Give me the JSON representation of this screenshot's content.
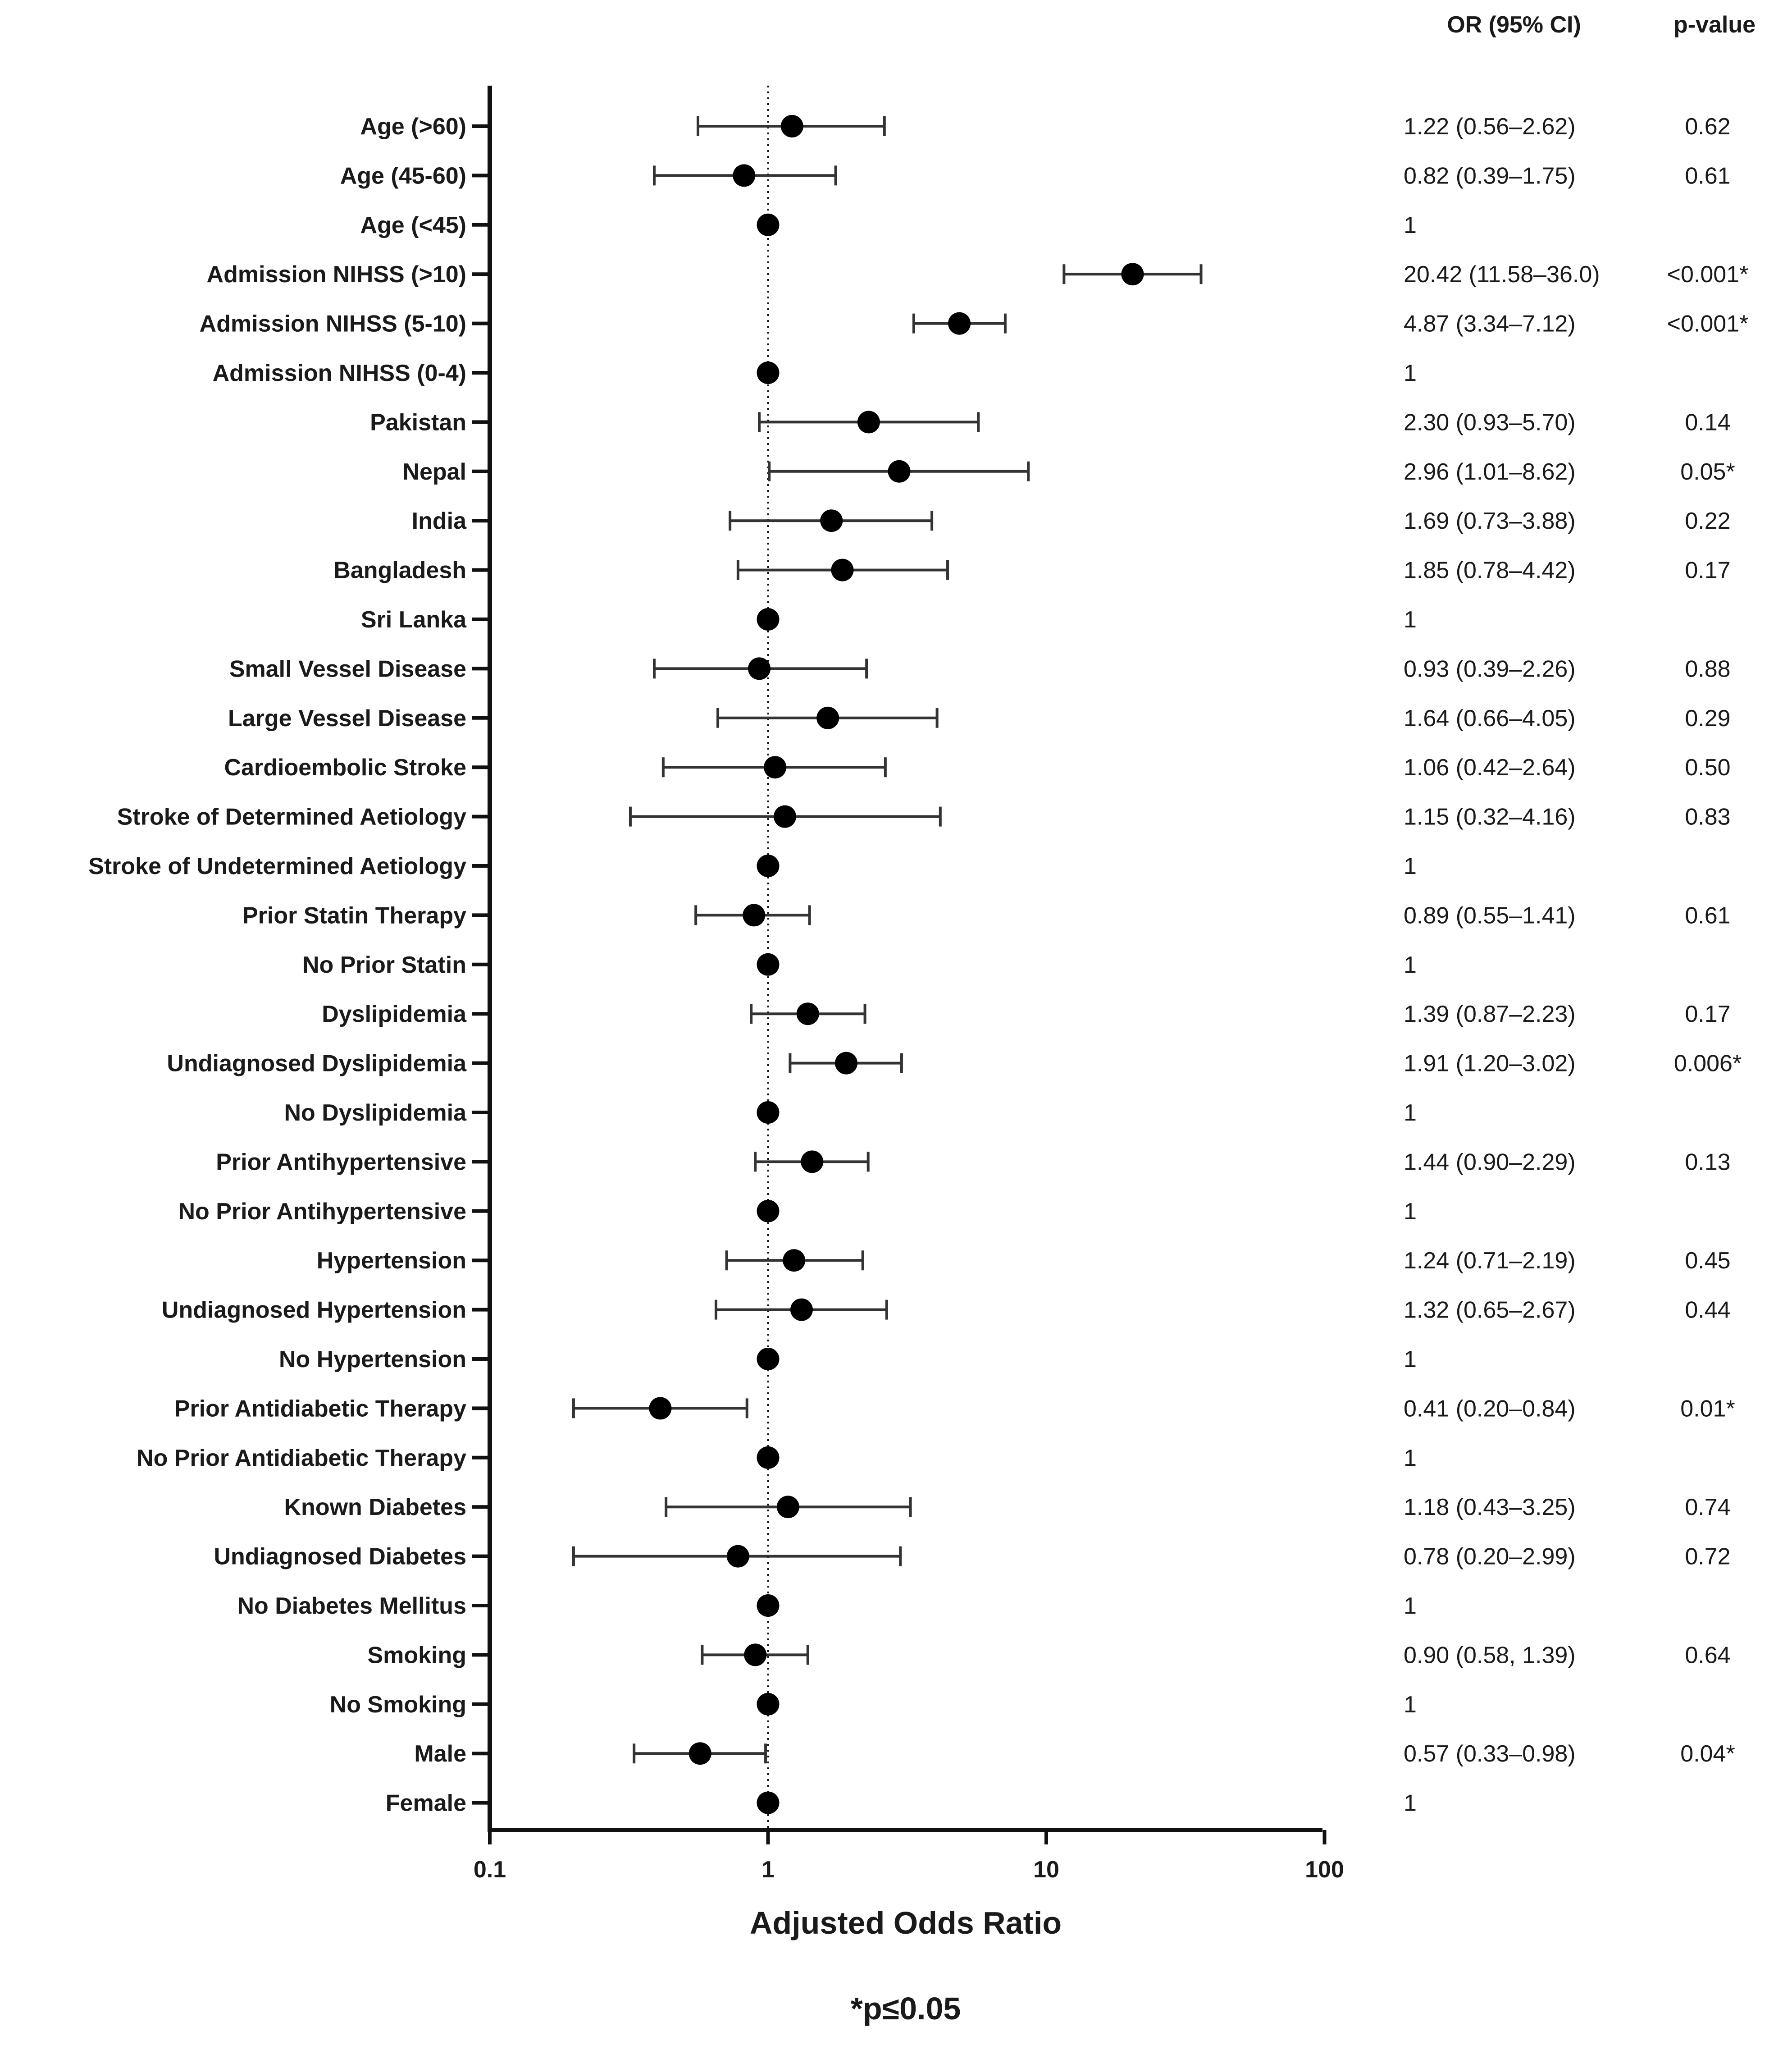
{
  "chart_data": {
    "type": "forest",
    "x_scale": "log",
    "xlim": [
      0.1,
      100
    ],
    "x_ticks": [
      {
        "value": 0.1,
        "label": "0.1"
      },
      {
        "value": 1,
        "label": "1"
      },
      {
        "value": 10,
        "label": "10"
      },
      {
        "value": 100,
        "label": "100"
      }
    ],
    "reference_value": 1,
    "xlabel": "Adjusted Odds Ratio",
    "column_headers": {
      "or_ci": "OR (95% CI)",
      "p_value": "p-value"
    },
    "footnote": "*p≤0.05",
    "rows": [
      {
        "label": "Age (>60)",
        "or": 1.22,
        "low": 0.56,
        "high": 2.62,
        "or_text": "1.22 (0.56–2.62)",
        "p_text": "0.62"
      },
      {
        "label": "Age (45-60)",
        "or": 0.82,
        "low": 0.39,
        "high": 1.75,
        "or_text": "0.82 (0.39–1.75)",
        "p_text": "0.61"
      },
      {
        "label": "Age (<45)",
        "or": 1,
        "low": null,
        "high": null,
        "or_text": "1",
        "p_text": ""
      },
      {
        "label": "Admission NIHSS (>10)",
        "or": 20.42,
        "low": 11.58,
        "high": 36.0,
        "or_text": "20.42 (11.58–36.0)",
        "p_text": "<0.001*"
      },
      {
        "label": "Admission NIHSS (5-10)",
        "or": 4.87,
        "low": 3.34,
        "high": 7.12,
        "or_text": "4.87 (3.34–7.12)",
        "p_text": "<0.001*"
      },
      {
        "label": "Admission NIHSS (0-4)",
        "or": 1,
        "low": null,
        "high": null,
        "or_text": "1",
        "p_text": ""
      },
      {
        "label": "Pakistan",
        "or": 2.3,
        "low": 0.93,
        "high": 5.7,
        "or_text": "2.30 (0.93–5.70)",
        "p_text": "0.14"
      },
      {
        "label": "Nepal",
        "or": 2.96,
        "low": 1.01,
        "high": 8.62,
        "or_text": "2.96 (1.01–8.62)",
        "p_text": "0.05*"
      },
      {
        "label": "India",
        "or": 1.69,
        "low": 0.73,
        "high": 3.88,
        "or_text": "1.69 (0.73–3.88)",
        "p_text": "0.22"
      },
      {
        "label": "Bangladesh",
        "or": 1.85,
        "low": 0.78,
        "high": 4.42,
        "or_text": "1.85 (0.78–4.42)",
        "p_text": "0.17"
      },
      {
        "label": "Sri Lanka",
        "or": 1,
        "low": null,
        "high": null,
        "or_text": "1",
        "p_text": ""
      },
      {
        "label": "Small Vessel Disease",
        "or": 0.93,
        "low": 0.39,
        "high": 2.26,
        "or_text": "0.93 (0.39–2.26)",
        "p_text": "0.88"
      },
      {
        "label": "Large Vessel Disease",
        "or": 1.64,
        "low": 0.66,
        "high": 4.05,
        "or_text": "1.64 (0.66–4.05)",
        "p_text": "0.29"
      },
      {
        "label": "Cardioembolic Stroke",
        "or": 1.06,
        "low": 0.42,
        "high": 2.64,
        "or_text": "1.06 (0.42–2.64)",
        "p_text": "0.50"
      },
      {
        "label": "Stroke of Determined Aetiology",
        "or": 1.15,
        "low": 0.32,
        "high": 4.16,
        "or_text": "1.15 (0.32–4.16)",
        "p_text": "0.83"
      },
      {
        "label": "Stroke of Undetermined Aetiology",
        "or": 1,
        "low": null,
        "high": null,
        "or_text": "1",
        "p_text": ""
      },
      {
        "label": "Prior Statin Therapy",
        "or": 0.89,
        "low": 0.55,
        "high": 1.41,
        "or_text": "0.89 (0.55–1.41)",
        "p_text": "0.61"
      },
      {
        "label": "No Prior Statin",
        "or": 1,
        "low": null,
        "high": null,
        "or_text": "1",
        "p_text": ""
      },
      {
        "label": "Dyslipidemia",
        "or": 1.39,
        "low": 0.87,
        "high": 2.23,
        "or_text": "1.39 (0.87–2.23)",
        "p_text": "0.17"
      },
      {
        "label": "Undiagnosed Dyslipidemia",
        "or": 1.91,
        "low": 1.2,
        "high": 3.02,
        "or_text": "1.91 (1.20–3.02)",
        "p_text": "0.006*"
      },
      {
        "label": "No Dyslipidemia",
        "or": 1,
        "low": null,
        "high": null,
        "or_text": "1",
        "p_text": ""
      },
      {
        "label": "Prior Antihypertensive",
        "or": 1.44,
        "low": 0.9,
        "high": 2.29,
        "or_text": "1.44 (0.90–2.29)",
        "p_text": "0.13"
      },
      {
        "label": "No Prior Antihypertensive",
        "or": 1,
        "low": null,
        "high": null,
        "or_text": "1",
        "p_text": ""
      },
      {
        "label": "Hypertension",
        "or": 1.24,
        "low": 0.71,
        "high": 2.19,
        "or_text": "1.24 (0.71–2.19)",
        "p_text": "0.45"
      },
      {
        "label": "Undiagnosed Hypertension",
        "or": 1.32,
        "low": 0.65,
        "high": 2.67,
        "or_text": "1.32 (0.65–2.67)",
        "p_text": "0.44"
      },
      {
        "label": "No Hypertension",
        "or": 1,
        "low": null,
        "high": null,
        "or_text": "1",
        "p_text": ""
      },
      {
        "label": "Prior Antidiabetic Therapy",
        "or": 0.41,
        "low": 0.2,
        "high": 0.84,
        "or_text": "0.41 (0.20–0.84)",
        "p_text": "0.01*"
      },
      {
        "label": "No Prior Antidiabetic Therapy",
        "or": 1,
        "low": null,
        "high": null,
        "or_text": "1",
        "p_text": ""
      },
      {
        "label": "Known Diabetes",
        "or": 1.18,
        "low": 0.43,
        "high": 3.25,
        "or_text": "1.18 (0.43–3.25)",
        "p_text": "0.74"
      },
      {
        "label": "Undiagnosed Diabetes",
        "or": 0.78,
        "low": 0.2,
        "high": 2.99,
        "or_text": "0.78 (0.20–2.99)",
        "p_text": "0.72"
      },
      {
        "label": "No Diabetes Mellitus",
        "or": 1,
        "low": null,
        "high": null,
        "or_text": "1",
        "p_text": ""
      },
      {
        "label": "Smoking",
        "or": 0.9,
        "low": 0.58,
        "high": 1.39,
        "or_text": "0.90 (0.58, 1.39)",
        "p_text": "0.64"
      },
      {
        "label": "No Smoking",
        "or": 1,
        "low": null,
        "high": null,
        "or_text": "1",
        "p_text": ""
      },
      {
        "label": "Male",
        "or": 0.57,
        "low": 0.33,
        "high": 0.98,
        "or_text": "0.57 (0.33–0.98)",
        "p_text": "0.04*"
      },
      {
        "label": "Female",
        "or": 1,
        "low": null,
        "high": null,
        "or_text": "1",
        "p_text": ""
      }
    ]
  }
}
